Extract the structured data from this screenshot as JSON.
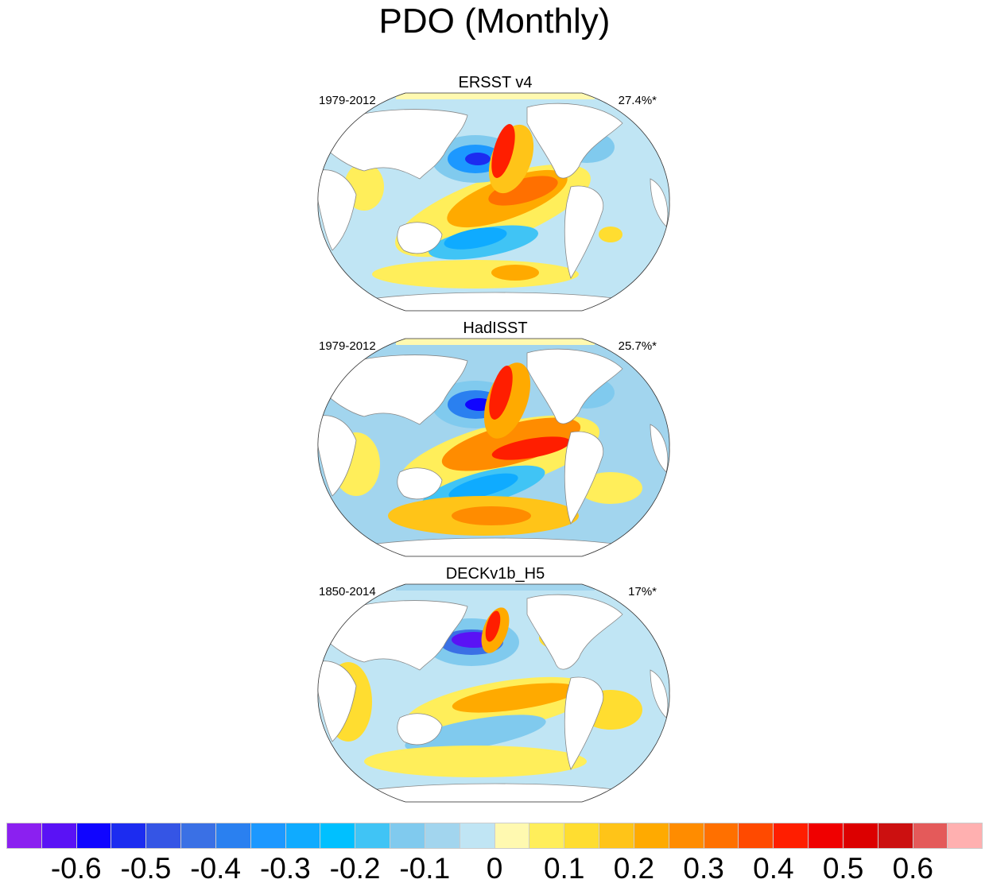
{
  "title": "PDO (Monthly)",
  "panels": [
    {
      "title": "ERSST v4",
      "period": "1979-2012",
      "variance": "27.4%*"
    },
    {
      "title": "HadISST",
      "period": "1979-2012",
      "variance": "25.7%*"
    },
    {
      "title": "DECKv1b_H5",
      "period": "1850-2014",
      "variance": "17%*"
    }
  ],
  "colorbar": {
    "labels": [
      "-0.6",
      "-0.5",
      "-0.4",
      "-0.3",
      "-0.2",
      "-0.1",
      "0",
      "0.1",
      "0.2",
      "0.3",
      "0.4",
      "0.5",
      "0.6"
    ],
    "label_values": [
      -0.6,
      -0.5,
      -0.4,
      -0.3,
      -0.2,
      -0.1,
      0,
      0.1,
      0.2,
      0.3,
      0.4,
      0.5,
      0.6
    ],
    "levels": [
      -0.65,
      -0.6,
      -0.55,
      -0.5,
      -0.45,
      -0.4,
      -0.35,
      -0.3,
      -0.25,
      -0.2,
      -0.15,
      -0.1,
      -0.05,
      0,
      0.05,
      0.1,
      0.15,
      0.2,
      0.25,
      0.3,
      0.35,
      0.4,
      0.45,
      0.5,
      0.55,
      0.6,
      0.65
    ],
    "colors": [
      "#8B20F0",
      "#5A12F5",
      "#1005FF",
      "#1C2CF0",
      "#3555E5",
      "#3A70E5",
      "#2A80F0",
      "#1C98FF",
      "#0FABFF",
      "#00C0FF",
      "#40C4F5",
      "#80CAEE",
      "#A2D5EE",
      "#C0E5F4",
      "#FFF9B0",
      "#FFEE5A",
      "#FFDD30",
      "#FFC418",
      "#FFAA00",
      "#FF8C00",
      "#FF7000",
      "#FF4A00",
      "#FF1E00",
      "#F00000",
      "#DC0000",
      "#CC1010",
      "#E45A5A",
      "#FFB0B0"
    ]
  }
}
